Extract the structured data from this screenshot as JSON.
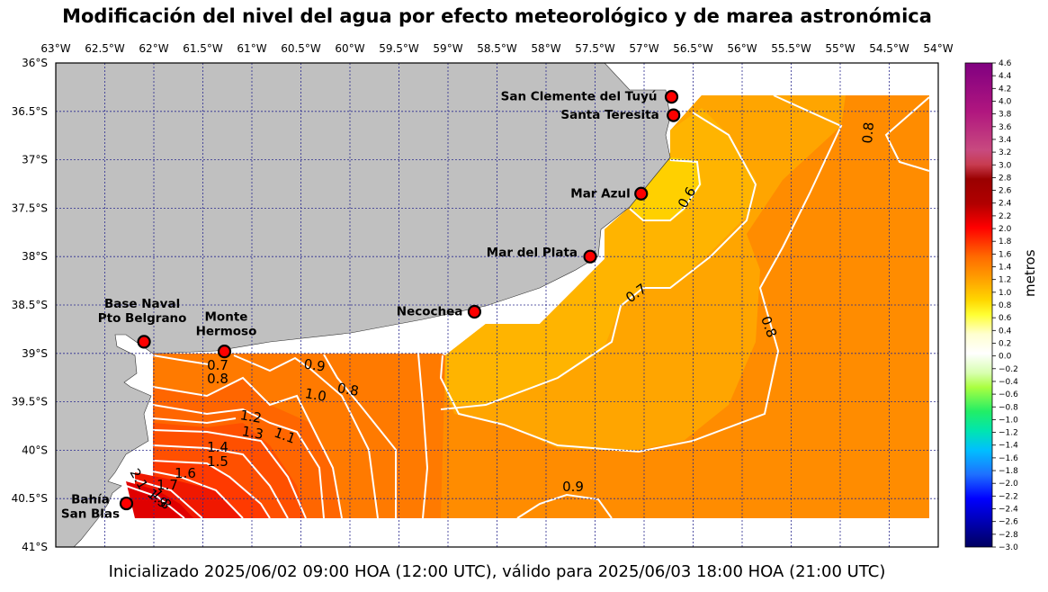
{
  "title": "Modificación del nivel del agua por efecto meteorológico y de marea astronómica",
  "subtitle": "Inicializado 2025/06/02 09:00 HOA (12:00 UTC), válido para 2025/06/03 18:00 HOA (21:00 UTC)",
  "map": {
    "lon_range": [
      -63.0,
      -54.0
    ],
    "lat_range": [
      -41.0,
      -36.0
    ],
    "lon_ticks": [
      "63°W",
      "62.5°W",
      "62°W",
      "61.5°W",
      "61°W",
      "60.5°W",
      "60°W",
      "59.5°W",
      "59°W",
      "58.5°W",
      "58°W",
      "57.5°W",
      "57°W",
      "56.5°W",
      "56°W",
      "55.5°W",
      "55°W",
      "54.5°W",
      "54°W"
    ],
    "lat_ticks": [
      "36°S",
      "36.5°S",
      "37°S",
      "37.5°S",
      "38°S",
      "38.5°S",
      "39°S",
      "39.5°S",
      "40°S",
      "40.5°S",
      "41°S"
    ],
    "gridlines": true,
    "land_color": "#c0c0c0",
    "gridline_color": "#2b2b8f"
  },
  "cities": [
    {
      "name": "San Clemente del Tuyú",
      "lon": -56.72,
      "lat": -36.35
    },
    {
      "name": "Santa Teresita",
      "lon": -56.7,
      "lat": -36.54
    },
    {
      "name": "Mar Azul",
      "lon": -57.03,
      "lat": -37.35
    },
    {
      "name": "Mar del Plata",
      "lon": -57.55,
      "lat": -38.0
    },
    {
      "name": "Necochea",
      "lon": -58.73,
      "lat": -38.57
    },
    {
      "name": "Base Naval\nPto Belgrano",
      "lon": -62.1,
      "lat": -38.88
    },
    {
      "name": "Monte\nHermoso",
      "lon": -61.28,
      "lat": -38.98
    },
    {
      "name": "Bahía\nSan Blas",
      "lon": -62.28,
      "lat": -40.55
    }
  ],
  "contour_labels": [
    "0.6",
    "0.7",
    "0.8",
    "0.8",
    "0.9",
    "0.9",
    "1.0",
    "0.8",
    "0.7",
    "0.8",
    "1.1",
    "1.2",
    "1.3",
    "1.4",
    "1.5",
    "1.6",
    "1.7",
    "1.8",
    "1.9",
    "2.1"
  ],
  "colorbar": {
    "label": "metros",
    "min": -3.0,
    "max": 4.6,
    "tick_labels": [
      "4.6",
      "4.4",
      "4.2",
      "4.0",
      "3.8",
      "3.6",
      "3.4",
      "3.2",
      "3.0",
      "2.8",
      "2.6",
      "2.4",
      "2.2",
      "2.0",
      "1.8",
      "1.6",
      "1.4",
      "1.2",
      "1.0",
      "0.8",
      "0.6",
      "0.4",
      "0.2",
      "0.0",
      "−0.2",
      "−0.4",
      "−0.6",
      "−0.8",
      "−1.0",
      "−1.2",
      "−1.4",
      "−1.6",
      "−1.8",
      "−2.0",
      "−2.2",
      "−2.4",
      "−2.6",
      "−2.8",
      "−3.0"
    ]
  }
}
